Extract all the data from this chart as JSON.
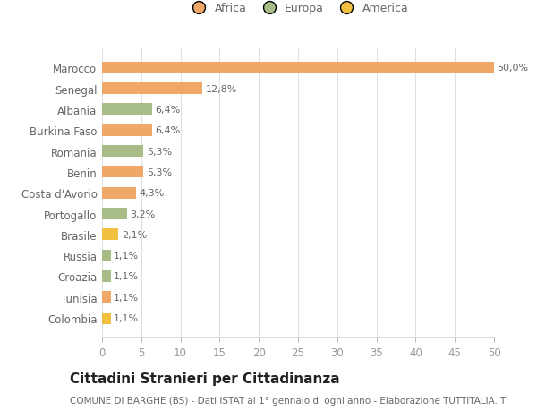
{
  "categories": [
    "Colombia",
    "Tunisia",
    "Croazia",
    "Russia",
    "Brasile",
    "Portogallo",
    "Costa d'Avorio",
    "Benin",
    "Romania",
    "Burkina Faso",
    "Albania",
    "Senegal",
    "Marocco"
  ],
  "values": [
    1.1,
    1.1,
    1.1,
    1.1,
    2.1,
    3.2,
    4.3,
    5.3,
    5.3,
    6.4,
    6.4,
    12.8,
    50.0
  ],
  "labels": [
    "1,1%",
    "1,1%",
    "1,1%",
    "1,1%",
    "2,1%",
    "3,2%",
    "4,3%",
    "5,3%",
    "5,3%",
    "6,4%",
    "6,4%",
    "12,8%",
    "50,0%"
  ],
  "colors": [
    "#f0c040",
    "#f0a868",
    "#a8bc88",
    "#a8bc88",
    "#f0c040",
    "#a8bc88",
    "#f0a868",
    "#f0a868",
    "#a8bc88",
    "#f0a868",
    "#a8bc88",
    "#f0a868",
    "#f0a868"
  ],
  "legend_labels": [
    "Africa",
    "Europa",
    "America"
  ],
  "legend_colors": [
    "#f0a868",
    "#a8bc88",
    "#f0c040"
  ],
  "title": "Cittadini Stranieri per Cittadinanza",
  "subtitle": "COMUNE DI BARGHE (BS) - Dati ISTAT al 1° gennaio di ogni anno - Elaborazione TUTTITALIA.IT",
  "xlim": [
    0,
    50
  ],
  "xticks": [
    0,
    5,
    10,
    15,
    20,
    25,
    30,
    35,
    40,
    45,
    50
  ],
  "background_color": "#ffffff",
  "grid_color": "#e0e0e0",
  "label_fontsize": 8.0,
  "tick_label_fontsize": 8.5,
  "title_fontsize": 11,
  "subtitle_fontsize": 7.5,
  "bar_height": 0.55
}
